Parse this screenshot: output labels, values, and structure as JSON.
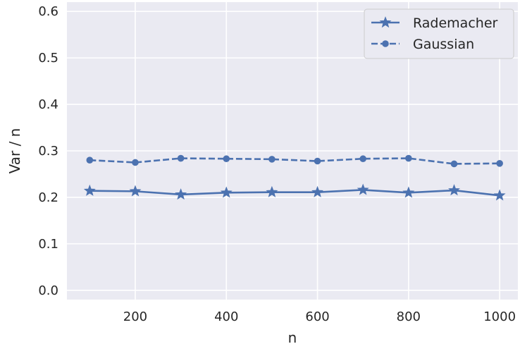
{
  "chart_data": {
    "type": "line",
    "xlabel": "n",
    "ylabel": "Var / n",
    "xlim": [
      50,
      1040
    ],
    "ylim": [
      -0.02,
      0.62
    ],
    "xticks": [
      200,
      400,
      600,
      800,
      1000
    ],
    "xtick_labels": [
      "200",
      "400",
      "600",
      "800",
      "1000"
    ],
    "yticks": [
      0.0,
      0.1,
      0.2,
      0.3,
      0.4,
      0.5,
      0.6
    ],
    "ytick_labels": [
      "0.0",
      "0.1",
      "0.2",
      "0.3",
      "0.4",
      "0.5",
      "0.6"
    ],
    "grid": true,
    "legend_position": "top-right",
    "x": [
      100,
      200,
      300,
      400,
      500,
      600,
      700,
      800,
      900,
      1000
    ],
    "series": [
      {
        "name": "Rademacher",
        "values": [
          0.214,
          0.213,
          0.206,
          0.21,
          0.211,
          0.211,
          0.216,
          0.21,
          0.215,
          0.204
        ],
        "line_style": "solid",
        "marker": "star",
        "color": "#4c72b0"
      },
      {
        "name": "Gaussian",
        "values": [
          0.28,
          0.275,
          0.284,
          0.283,
          0.282,
          0.278,
          0.283,
          0.284,
          0.272,
          0.273
        ],
        "line_style": "dashed",
        "marker": "circle",
        "color": "#4c72b0"
      }
    ],
    "background_color": "#eaeaf2",
    "grid_color": "#ffffff"
  }
}
